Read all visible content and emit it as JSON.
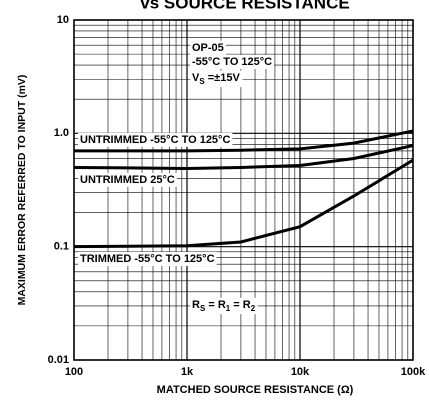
{
  "chart_data": {
    "type": "line",
    "title": "vs SOURCE RESISTANCE",
    "xlabel": "MATCHED SOURCE RESISTANCE (Ω)",
    "ylabel": "MAXIMUM ERROR REFERRED TO INPUT (mV)",
    "xscale": "log",
    "yscale": "log",
    "xlim": [
      100,
      100000
    ],
    "ylim": [
      0.01,
      10
    ],
    "xticks": [
      100,
      {
        "value": 1000,
        "label": "1k"
      },
      {
        "value": 10000,
        "label": "10k"
      },
      {
        "value": 100000,
        "label": "100k"
      }
    ],
    "yticks": [
      0.01,
      0.1,
      {
        "value": 1,
        "label": "1.0"
      },
      10
    ],
    "grid": true,
    "x": [
      100,
      1000,
      3000,
      10000,
      30000,
      100000
    ],
    "series": [
      {
        "name": "UNTRIMMED -55°C TO 125°C",
        "color": "#000000",
        "values": [
          0.7,
          0.7,
          0.71,
          0.73,
          0.82,
          1.05
        ]
      },
      {
        "name": "UNTRIMMED 25°C",
        "color": "#000000",
        "values": [
          0.5,
          0.49,
          0.5,
          0.52,
          0.6,
          0.78
        ]
      },
      {
        "name": "TRIMMED -55°C TO 125°C",
        "color": "#000000",
        "values": [
          0.1,
          0.102,
          0.11,
          0.15,
          0.28,
          0.58
        ]
      }
    ],
    "annotations": [
      {
        "parts": [
          "OP-05"
        ]
      },
      {
        "parts": [
          "-55°C TO 125°C"
        ]
      },
      {
        "parts": [
          "V",
          "S",
          " =±15V"
        ]
      },
      {
        "parts": [
          "R",
          "S",
          " = R",
          "1",
          " = R",
          "2"
        ]
      }
    ]
  }
}
